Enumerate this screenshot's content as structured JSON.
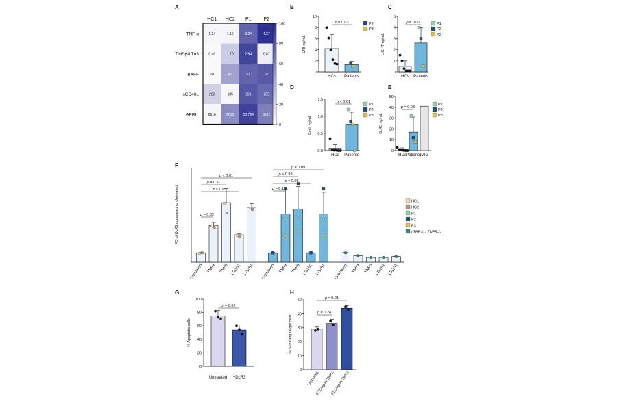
{
  "chart_data": [
    {
      "panel": "A",
      "type": "heatmap",
      "columns": [
        "HC1",
        "HC2",
        "P1",
        "P2"
      ],
      "rows": [
        "TNF-α",
        "TNF-β/LTα3",
        "BAFF",
        "sCD40L",
        "APRIL"
      ],
      "cells": [
        [
          {
            "label": "1.24",
            "level": 5
          },
          {
            "label": "1.16",
            "level": 5
          },
          {
            "label": "3.24",
            "level": 75
          },
          {
            "label": "4.37",
            "level": 100
          }
        ],
        [
          {
            "label": "0.48",
            "level": 3
          },
          {
            "label": "1.20",
            "level": 25
          },
          {
            "label": "2.94",
            "level": 90
          },
          {
            "label": "0.87",
            "level": 8
          }
        ],
        [
          {
            "label": "28",
            "level": 3
          },
          {
            "label": "42",
            "level": 45
          },
          {
            "label": "61",
            "level": 75
          },
          {
            "label": "52",
            "level": 80
          }
        ],
        [
          {
            "label": "200",
            "level": 22
          },
          {
            "label": "185",
            "level": 4
          },
          {
            "label": "298",
            "level": 82
          },
          {
            "label": "255",
            "level": 72
          }
        ],
        [
          {
            "label": "6616",
            "level": 4
          },
          {
            "label": "8815",
            "level": 55
          },
          {
            "label": "10 794",
            "level": 92
          },
          {
            "label": "8521",
            "level": 62
          }
        ]
      ],
      "colorbar_ticks": [
        "100",
        "80",
        "60",
        "40",
        "20",
        "0"
      ],
      "colors": {
        "low": "#ffffff",
        "high": "#2e3192"
      }
    },
    {
      "panel": "B",
      "type": "bar",
      "categories": [
        "HCs",
        "Patients"
      ],
      "values": [
        4.2,
        1.3
      ],
      "ylabel": "LTB ng/mL",
      "ylim": [
        0,
        10
      ],
      "yticks": [
        "0",
        "2",
        "4",
        "6",
        "8",
        "10"
      ],
      "pvalue": "p = 0.03",
      "legend": [
        "P2",
        "P3"
      ],
      "points": {
        "HCs": [
          8.0,
          6.1,
          4.0,
          2.2,
          1.5,
          1.4
        ],
        "Patients": [
          1.6,
          1.0
        ]
      }
    },
    {
      "panel": "C",
      "type": "bar",
      "categories": [
        "HCs",
        "Patients"
      ],
      "values": [
        0.5,
        2.6
      ],
      "ylabel": "LIGHT ng/mL",
      "ylim": [
        0,
        5
      ],
      "yticks": [
        "0",
        "1",
        "2",
        "3",
        "4",
        "5"
      ],
      "pvalue": "p = 0.01",
      "legend": [
        "P1",
        "P2",
        "P3"
      ],
      "points": {
        "HCs": [
          1.5,
          1.0,
          0.3,
          0.1,
          0.1,
          0.1
        ],
        "Patients": [
          4.0,
          3.0,
          0.5
        ]
      }
    },
    {
      "panel": "D",
      "type": "bar",
      "categories": [
        "HCs",
        "Patients"
      ],
      "values": [
        0.07,
        0.77
      ],
      "ylabel": "FasL ng/mL",
      "ylim": [
        0,
        1.5
      ],
      "yticks": [
        "0.0",
        "0.5",
        "1.0",
        "1.5"
      ],
      "pvalue": "p < 0.01",
      "legend": [
        "P1",
        "P2",
        "P3"
      ],
      "points": {
        "HCs": [
          0.35,
          0.02,
          0.01,
          0.01,
          0.0,
          0.0
        ],
        "Patients": [
          1.2,
          0.85,
          0.78,
          0.0
        ]
      }
    },
    {
      "panel": "E",
      "type": "bar",
      "categories": [
        "HCs",
        "Patients",
        "IVIG"
      ],
      "values": [
        1.0,
        17,
        41
      ],
      "ylabel": "DcR3 ng/mL",
      "ylim": [
        0,
        50
      ],
      "yticks": [
        "0",
        "10",
        "20",
        "30",
        "40",
        "50"
      ],
      "pvalue": "p = 0.03",
      "legend": [
        "P1",
        "P2",
        "P3"
      ],
      "points": {
        "HCs": [
          3,
          1,
          0.5,
          0.2,
          0,
          0
        ],
        "Patients": [
          32,
          12,
          8
        ]
      }
    },
    {
      "panel": "F",
      "type": "bar",
      "categories": [
        "Untreated",
        "TNFa",
        "TNFb",
        "LTa1b2",
        "LTa2b1"
      ],
      "ylabel": "FC of DcR3 compared to Untreated",
      "ylim": [
        0,
        10
      ],
      "groups": [
        {
          "values": [
            1.0,
            3.9,
            6.3,
            2.9,
            5.8
          ],
          "errors": [
            0.05,
            0.3,
            1.5,
            0.1,
            0.4
          ]
        },
        {
          "values": [
            1.0,
            5.1,
            5.6,
            1.0,
            5.1
          ],
          "errors": [
            0.05,
            2.6,
            2.4,
            0.05,
            2.3
          ]
        },
        {
          "values": [
            1.0,
            0.7,
            0.5,
            0.5,
            0.6
          ],
          "errors": [
            0.05,
            0.05,
            0.05,
            0.05,
            0.05
          ]
        }
      ],
      "pvalues_group1": [
        "p < 0.01",
        "p = 0.11",
        "p < 0.01",
        "p = 0.02"
      ],
      "pvalues_group2": [
        "p = 0.09",
        "p > 0.99",
        "p = 0.05",
        "p = 0.10"
      ],
      "legend": [
        "HC1",
        "HC2",
        "P1",
        "P2",
        "P3",
        "LTBR-/- / TNFR-/-"
      ]
    },
    {
      "panel": "G",
      "type": "bar",
      "categories": [
        "Untreated",
        "+DcR3"
      ],
      "values": [
        75,
        54
      ],
      "ylabel": "% Apoptotic cells",
      "ylim": [
        0,
        100
      ],
      "yticks": [
        "0",
        "20",
        "40",
        "60",
        "80",
        "100"
      ],
      "pvalue": "p = 0.02",
      "points": {
        "Untreated": [
          82,
          73,
          71
        ],
        "+DcR3": [
          60,
          55,
          48
        ]
      }
    },
    {
      "panel": "H",
      "type": "bar",
      "categories": [
        "Untreated",
        "6.25mg/ml DcR3",
        "37.5mg/ml DcR3"
      ],
      "values": [
        29,
        33,
        44
      ],
      "ylabel": "% Surviving target cells",
      "ylim": [
        0,
        50
      ],
      "yticks": [
        "0",
        "10",
        "20",
        "30",
        "40",
        "50"
      ],
      "pvalues": [
        "p = 0.24",
        "p = 0.01"
      ],
      "points": {
        "Untreated": [
          28,
          29
        ],
        "6.25mg/ml DcR3": [
          35,
          32
        ],
        "37.5mg/ml DcR3": [
          45,
          43
        ]
      }
    }
  ],
  "colors": {
    "HC1": "#f2d3b0",
    "HC2": "#b79584",
    "P1": "#8fd3ab",
    "P2": "#1f4e79",
    "P3": "#d8c25a",
    "KO": "#2e8b7a",
    "bar_hc": "#eaf3fb",
    "bar_patient": "#6fb7dd",
    "bar_ivig": "#e6e6e6",
    "bar_g_untreated": "#dcd7ef",
    "bar_g_dcr3": "#3c56aa",
    "bar_h_mid": "#8f90c9",
    "bar_h_high": "#2e4ea0"
  }
}
